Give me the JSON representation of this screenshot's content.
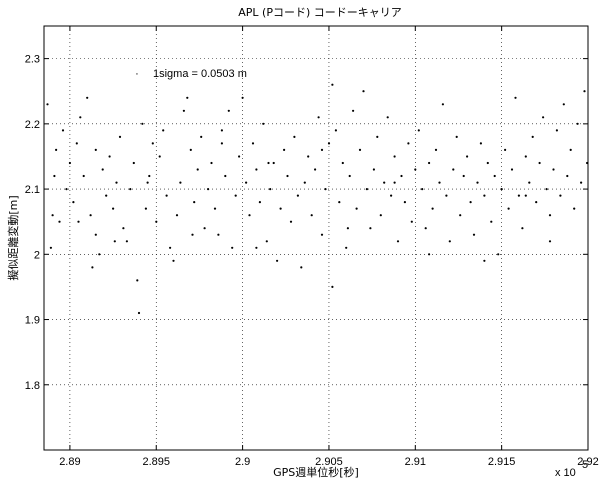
{
  "chart_data": {
    "type": "scatter",
    "title": "APL (Pコード) コードーキャリア",
    "xlabel": "GPS週単位秒[秒]",
    "ylabel": "擬似距離変動[m]",
    "x_exponent_label": "x 10",
    "x_exponent_power": "5",
    "annotation": "1sigma = 0.0503 m",
    "annotation_marker": "·",
    "xlim": [
      288850,
      292000
    ],
    "ylim": [
      1.7,
      2.35
    ],
    "x_ticks": [
      289000,
      289500,
      290000,
      290500,
      291000,
      291500,
      292000
    ],
    "x_tick_labels": [
      "2.89",
      "2.895",
      "2.9",
      "2.905",
      "2.91",
      "2.915",
      "2.92"
    ],
    "y_ticks": [
      1.8,
      1.9,
      2.0,
      2.1,
      2.2,
      2.3
    ],
    "y_tick_labels": [
      "1.8",
      "1.9",
      "2",
      "2.1",
      "2.2",
      "2.3"
    ],
    "grid": true,
    "series": [
      {
        "points": [
          [
            288870,
            2.23
          ],
          [
            288890,
            2.01
          ],
          [
            288900,
            2.06
          ],
          [
            288910,
            2.12
          ],
          [
            288920,
            2.16
          ],
          [
            288940,
            2.05
          ],
          [
            288960,
            2.19
          ],
          [
            288980,
            2.1
          ],
          [
            289000,
            2.14
          ],
          [
            289020,
            2.08
          ],
          [
            289040,
            2.17
          ],
          [
            289060,
            2.21
          ],
          [
            289080,
            2.12
          ],
          [
            289100,
            2.24
          ],
          [
            289120,
            2.06
          ],
          [
            289130,
            1.98
          ],
          [
            289150,
            2.03
          ],
          [
            289170,
            2.0
          ],
          [
            289190,
            2.13
          ],
          [
            289210,
            2.09
          ],
          [
            289230,
            2.15
          ],
          [
            289250,
            2.07
          ],
          [
            289270,
            2.11
          ],
          [
            289290,
            2.18
          ],
          [
            289310,
            2.04
          ],
          [
            289330,
            2.02
          ],
          [
            289350,
            2.1
          ],
          [
            289370,
            2.14
          ],
          [
            289390,
            1.96
          ],
          [
            289400,
            1.91
          ],
          [
            289420,
            2.2
          ],
          [
            289440,
            2.07
          ],
          [
            289460,
            2.12
          ],
          [
            289480,
            2.17
          ],
          [
            289500,
            2.05
          ],
          [
            289520,
            2.15
          ],
          [
            289540,
            2.19
          ],
          [
            289560,
            2.09
          ],
          [
            289580,
            2.01
          ],
          [
            289600,
            1.99
          ],
          [
            289620,
            2.06
          ],
          [
            289640,
            2.11
          ],
          [
            289660,
            2.22
          ],
          [
            289680,
            2.24
          ],
          [
            289700,
            2.16
          ],
          [
            289720,
            2.08
          ],
          [
            289740,
            2.13
          ],
          [
            289760,
            2.18
          ],
          [
            289780,
            2.04
          ],
          [
            289800,
            2.1
          ],
          [
            289820,
            2.14
          ],
          [
            289840,
            2.07
          ],
          [
            289860,
            2.03
          ],
          [
            289880,
            2.19
          ],
          [
            289900,
            2.12
          ],
          [
            289920,
            2.22
          ],
          [
            289940,
            2.01
          ],
          [
            289960,
            2.09
          ],
          [
            289980,
            2.15
          ],
          [
            290000,
            2.24
          ],
          [
            290020,
            2.11
          ],
          [
            290040,
            2.06
          ],
          [
            290060,
            2.17
          ],
          [
            290080,
            2.13
          ],
          [
            290100,
            2.08
          ],
          [
            290120,
            2.2
          ],
          [
            290140,
            2.02
          ],
          [
            290160,
            2.1
          ],
          [
            290180,
            2.14
          ],
          [
            290200,
            1.99
          ],
          [
            290220,
            2.07
          ],
          [
            290240,
            2.16
          ],
          [
            290260,
            2.12
          ],
          [
            290280,
            2.05
          ],
          [
            290300,
            2.18
          ],
          [
            290320,
            2.09
          ],
          [
            290340,
            1.98
          ],
          [
            290360,
            2.11
          ],
          [
            290380,
            2.15
          ],
          [
            290400,
            2.06
          ],
          [
            290420,
            2.13
          ],
          [
            290440,
            2.21
          ],
          [
            290460,
            2.03
          ],
          [
            290480,
            2.1
          ],
          [
            290500,
            2.17
          ],
          [
            290520,
            2.26
          ],
          [
            290540,
            2.19
          ],
          [
            290560,
            2.08
          ],
          [
            290580,
            2.14
          ],
          [
            290600,
            2.01
          ],
          [
            290620,
            2.12
          ],
          [
            290640,
            2.22
          ],
          [
            290660,
            2.07
          ],
          [
            290680,
            2.16
          ],
          [
            290700,
            2.25
          ],
          [
            290720,
            2.1
          ],
          [
            290740,
            2.04
          ],
          [
            290760,
            2.13
          ],
          [
            290780,
            2.18
          ],
          [
            290800,
            2.06
          ],
          [
            290820,
            2.11
          ],
          [
            290840,
            2.21
          ],
          [
            290860,
            2.09
          ],
          [
            290880,
            2.15
          ],
          [
            290900,
            2.02
          ],
          [
            290920,
            2.12
          ],
          [
            290940,
            2.08
          ],
          [
            290960,
            2.17
          ],
          [
            290980,
            2.05
          ],
          [
            291000,
            2.13
          ],
          [
            291020,
            2.19
          ],
          [
            291040,
            2.1
          ],
          [
            291060,
            2.04
          ],
          [
            291080,
            2.14
          ],
          [
            291100,
            2.07
          ],
          [
            291120,
            2.16
          ],
          [
            291140,
            2.11
          ],
          [
            291160,
            2.23
          ],
          [
            291180,
            2.09
          ],
          [
            291200,
            2.02
          ],
          [
            291220,
            2.13
          ],
          [
            291240,
            2.18
          ],
          [
            291260,
            2.06
          ],
          [
            291280,
            2.12
          ],
          [
            291300,
            2.15
          ],
          [
            291320,
            2.08
          ],
          [
            291340,
            2.03
          ],
          [
            291360,
            2.11
          ],
          [
            291380,
            2.17
          ],
          [
            291400,
            2.09
          ],
          [
            291420,
            2.14
          ],
          [
            291440,
            2.05
          ],
          [
            291460,
            2.12
          ],
          [
            291480,
            2.0
          ],
          [
            291500,
            2.1
          ],
          [
            291520,
            2.16
          ],
          [
            291540,
            2.07
          ],
          [
            291560,
            2.13
          ],
          [
            291580,
            2.24
          ],
          [
            291600,
            2.09
          ],
          [
            291620,
            2.04
          ],
          [
            291640,
            2.15
          ],
          [
            291660,
            2.11
          ],
          [
            291680,
            2.18
          ],
          [
            291700,
            2.08
          ],
          [
            291720,
            2.14
          ],
          [
            291740,
            2.21
          ],
          [
            291760,
            2.1
          ],
          [
            291780,
            2.06
          ],
          [
            291800,
            2.13
          ],
          [
            291820,
            2.19
          ],
          [
            291840,
            2.09
          ],
          [
            291860,
            2.23
          ],
          [
            291880,
            2.12
          ],
          [
            291900,
            2.16
          ],
          [
            291920,
            2.07
          ],
          [
            291940,
            2.2
          ],
          [
            291960,
            2.11
          ],
          [
            291980,
            2.25
          ],
          [
            291995,
            2.14
          ],
          [
            289050,
            2.05
          ],
          [
            289260,
            2.02
          ],
          [
            289710,
            2.03
          ],
          [
            290080,
            2.01
          ],
          [
            290520,
            1.95
          ],
          [
            290610,
            2.04
          ],
          [
            291080,
            2.0
          ],
          [
            291400,
            1.99
          ],
          [
            291780,
            2.02
          ],
          [
            289150,
            2.16
          ],
          [
            289450,
            2.11
          ],
          [
            289880,
            2.17
          ],
          [
            290150,
            2.14
          ],
          [
            290460,
            2.16
          ],
          [
            290880,
            2.11
          ],
          [
            291640,
            2.09
          ]
        ]
      }
    ]
  }
}
